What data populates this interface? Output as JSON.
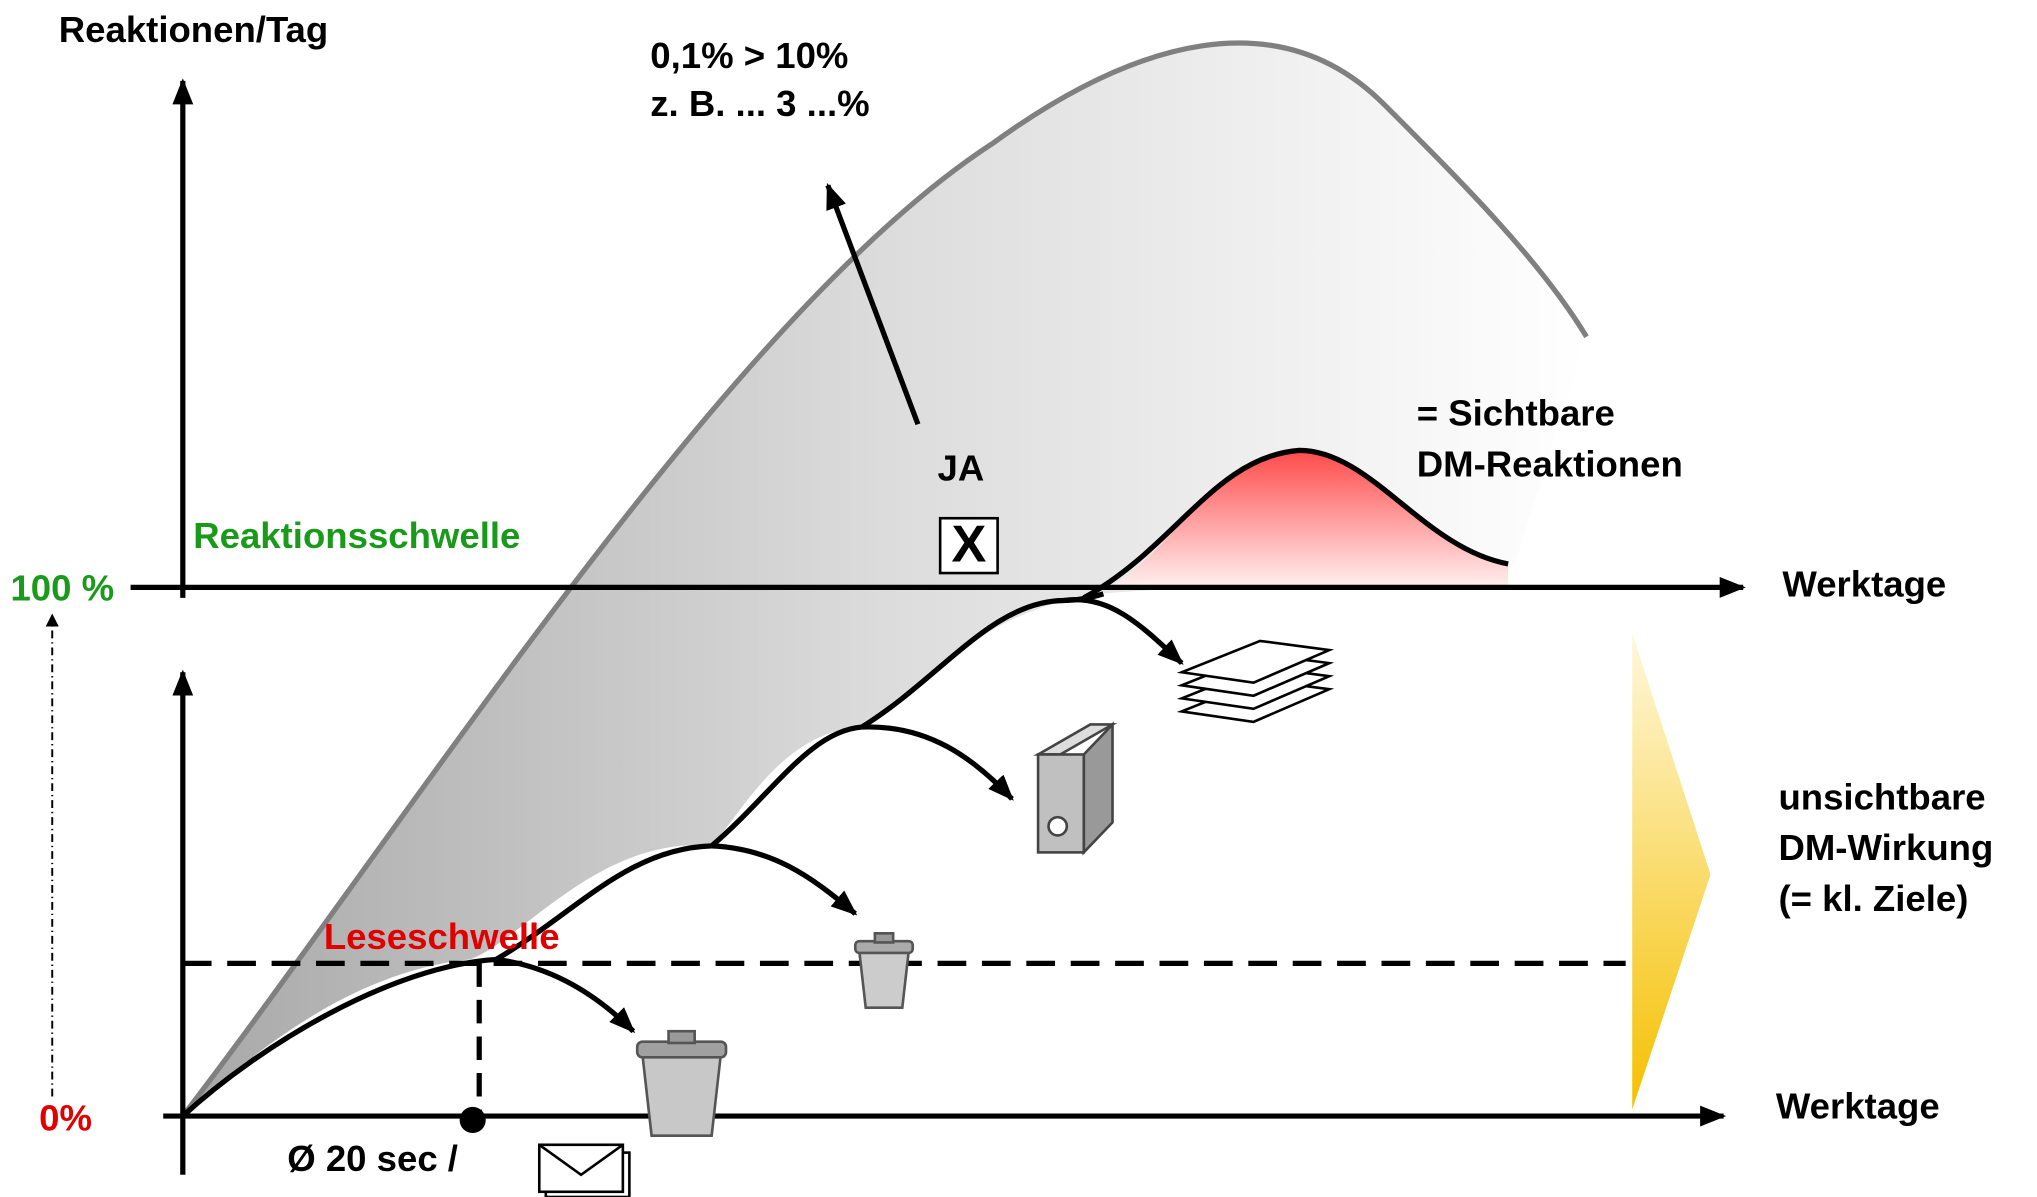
{
  "labels": {
    "y_axis_title": "Reaktionen/Tag",
    "ratio_line1": "0,1% > 10%",
    "ratio_line2": "z. B. ... 3 ...%",
    "visible_line1": "= Sichtbare",
    "visible_line2": "DM-Reaktionen",
    "yes": "JA",
    "checkbox": "X",
    "reaction_threshold": "Reaktionsschwelle",
    "hundred_percent": "100 %",
    "top_x_axis": "Werktage",
    "invisible_line1": "unsichtbare",
    "invisible_line2": "DM-Wirkung",
    "invisible_line3": "(= kl. Ziele)",
    "reading_threshold": "Leseschwelle",
    "zero_percent": "0%",
    "bottom_x_axis": "Werktage",
    "average_time": "Ø 20 sec /"
  }
}
